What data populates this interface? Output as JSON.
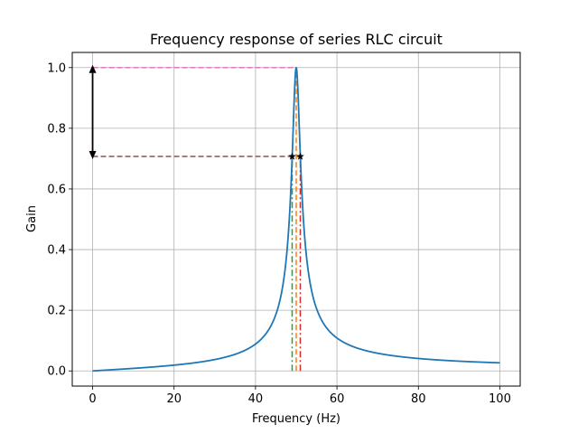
{
  "chart_data": {
    "type": "line",
    "title": "Frequency response of series RLC circuit",
    "xlabel": "Frequency (Hz)",
    "ylabel": "Gain",
    "xlim": [
      -5,
      105
    ],
    "ylim": [
      -0.05,
      1.05
    ],
    "xticks": [
      0,
      20,
      40,
      60,
      80,
      100
    ],
    "yticks": [
      0.0,
      0.2,
      0.4,
      0.6,
      0.8,
      1.0
    ],
    "xtick_labels": [
      "0",
      "20",
      "40",
      "60",
      "80",
      "100"
    ],
    "ytick_labels": [
      "0.0",
      "0.2",
      "0.4",
      "0.6",
      "0.8",
      "1.0"
    ],
    "grid": true,
    "resonant_frequency": 50,
    "bandwidth": 2,
    "lower_cutoff": 49,
    "upper_cutoff": 51,
    "peak_gain": 1.0,
    "half_power_gain": 0.707,
    "series": [
      {
        "color": "#1f77b4",
        "style": "solid",
        "kind": "gain-curve"
      }
    ],
    "markers": [
      {
        "kind": "hline",
        "y": 1.0,
        "x_from": 0,
        "x_to": 50,
        "color": "#e377c2",
        "style": "dashed"
      },
      {
        "kind": "hline",
        "y": 0.707,
        "x_from": 0,
        "x_to": 51,
        "color": "#8c564b",
        "style": "dashed"
      },
      {
        "kind": "vline",
        "x": 50,
        "y_from": 0,
        "y_to": 1.0,
        "color": "#ff7f0e",
        "style": "dashed"
      },
      {
        "kind": "vline",
        "x": 49,
        "y_from": 0,
        "y_to": 0.707,
        "color": "#2ca02c",
        "style": "dashdot"
      },
      {
        "kind": "vline",
        "x": 51,
        "y_from": 0,
        "y_to": 0.707,
        "color": "#d62728",
        "style": "dashdot"
      },
      {
        "kind": "arrow",
        "x": 0,
        "y_from": 0.707,
        "y_to": 1.0,
        "color": "#000000"
      }
    ],
    "star_points": [
      {
        "x": 49,
        "y": 0.707
      },
      {
        "x": 51,
        "y": 0.707
      }
    ]
  }
}
